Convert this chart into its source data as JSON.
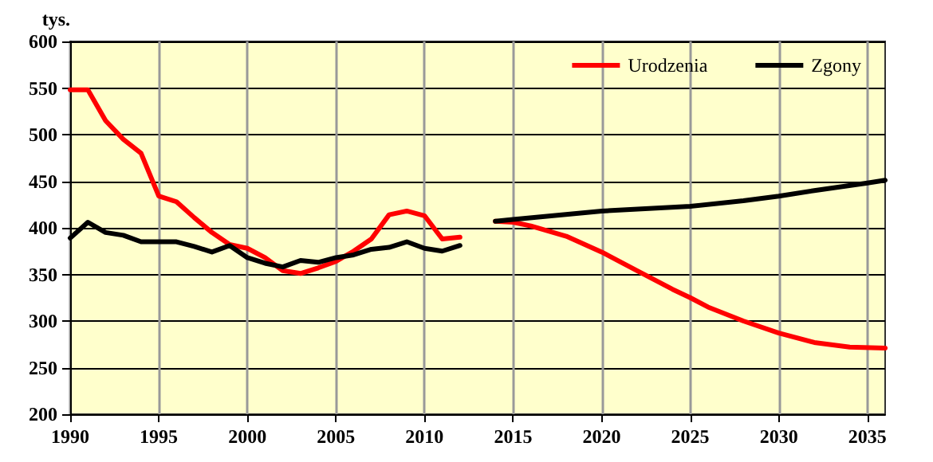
{
  "chart_data": {
    "type": "line",
    "ylabel": "tys.",
    "xlim": [
      1990,
      2036
    ],
    "xticks": [
      1990,
      1995,
      2000,
      2005,
      2010,
      2015,
      2020,
      2025,
      2030,
      2035
    ],
    "ylim": [
      200,
      600
    ],
    "yticks": [
      200,
      250,
      300,
      350,
      400,
      450,
      500,
      550,
      600
    ],
    "grid": true,
    "legend": "top right",
    "marker": "none",
    "line_style": "solid",
    "series": [
      {
        "name": "Urodzenia",
        "color": "#ff0000",
        "x": [
          1990,
          1991,
          1992,
          1993,
          1994,
          1995,
          1996,
          1997,
          1998,
          1999,
          2000,
          2001,
          2002,
          2003,
          2004,
          2005,
          2006,
          2007,
          2008,
          2009,
          2010,
          2011,
          2012,
          2013,
          2014,
          2015,
          2016,
          2018,
          2020,
          2022,
          2024,
          2025,
          2026,
          2028,
          2030,
          2032,
          2034,
          2036
        ],
        "values": [
          548,
          548,
          515,
          495,
          480,
          434,
          428,
          411,
          395,
          382,
          378,
          368,
          354,
          351,
          357,
          364,
          375,
          388,
          414,
          418,
          413,
          388,
          390,
          null,
          407,
          406,
          402,
          391,
          374,
          354,
          334,
          325,
          315,
          300,
          287,
          277,
          272,
          271
        ]
      },
      {
        "name": "Zgony",
        "color": "#000000",
        "x": [
          1990,
          1991,
          1992,
          1993,
          1994,
          1995,
          1996,
          1997,
          1998,
          1999,
          2000,
          2001,
          2002,
          2003,
          2004,
          2005,
          2006,
          2007,
          2008,
          2009,
          2010,
          2011,
          2012,
          2013,
          2014,
          2015,
          2020,
          2025,
          2028,
          2030,
          2032,
          2035,
          2036
        ],
        "values": [
          389,
          406,
          395,
          392,
          385,
          385,
          385,
          380,
          374,
          381,
          368,
          362,
          358,
          365,
          363,
          368,
          371,
          377,
          379,
          385,
          378,
          375,
          381,
          null,
          407,
          409,
          418,
          423,
          429,
          434,
          440,
          448,
          451
        ]
      }
    ]
  }
}
